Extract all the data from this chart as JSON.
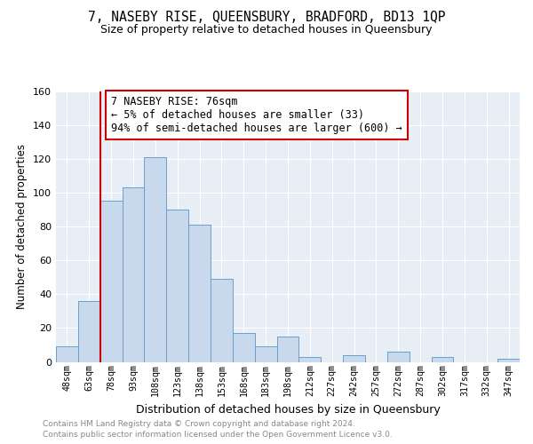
{
  "title": "7, NASEBY RISE, QUEENSBURY, BRADFORD, BD13 1QP",
  "subtitle": "Size of property relative to detached houses in Queensbury",
  "xlabel": "Distribution of detached houses by size in Queensbury",
  "ylabel": "Number of detached properties",
  "footer_line1": "Contains HM Land Registry data © Crown copyright and database right 2024.",
  "footer_line2": "Contains public sector information licensed under the Open Government Licence v3.0.",
  "bin_labels": [
    "48sqm",
    "63sqm",
    "78sqm",
    "93sqm",
    "108sqm",
    "123sqm",
    "138sqm",
    "153sqm",
    "168sqm",
    "183sqm",
    "198sqm",
    "212sqm",
    "227sqm",
    "242sqm",
    "257sqm",
    "272sqm",
    "287sqm",
    "302sqm",
    "317sqm",
    "332sqm",
    "347sqm"
  ],
  "bar_heights": [
    9,
    36,
    95,
    103,
    121,
    90,
    81,
    49,
    17,
    9,
    15,
    3,
    0,
    4,
    0,
    6,
    0,
    3,
    0,
    0,
    2
  ],
  "bar_color": "#c8d9ed",
  "bar_edge_color": "#6a9fc8",
  "vline_color": "#cc0000",
  "annotation_title": "7 NASEBY RISE: 76sqm",
  "annotation_line1": "← 5% of detached houses are smaller (33)",
  "annotation_line2": "94% of semi-detached houses are larger (600) →",
  "annotation_box_color": "#ffffff",
  "annotation_box_edge_color": "#cc0000",
  "ylim": [
    0,
    160
  ],
  "yticks": [
    0,
    20,
    40,
    60,
    80,
    100,
    120,
    140,
    160
  ],
  "bg_color": "#ffffff",
  "plot_bg_color": "#e8eef6"
}
